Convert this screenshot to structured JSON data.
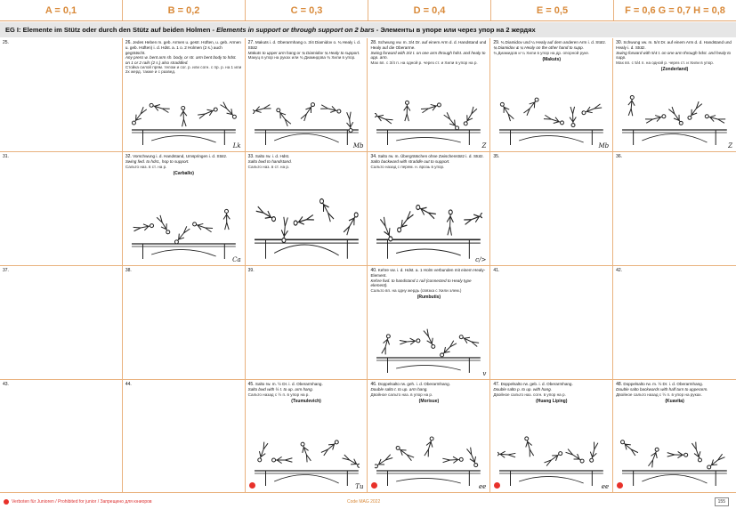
{
  "header": {
    "columns": [
      "A = 0,1",
      "B = 0,2",
      "C = 0,3",
      "D = 0,4",
      "E = 0,5",
      "F = 0,6 G = 0,7 H = 0,8"
    ]
  },
  "group": {
    "prefix": "EG I:",
    "german": "Elemente im Stütz oder durch den Stütz auf beiden Holmen -",
    "english": "Elements in support or through support on 2 bars",
    "russian": "- Элементы в упоре или через упор на 2 жердях"
  },
  "cells": [
    {
      "num": "25.",
      "de": "",
      "en": "",
      "ru": "",
      "name": "",
      "sig": "",
      "drawing": false,
      "red": false
    },
    {
      "num": "26.",
      "de": "Jedes Heben m. geb. Armen u. gestr. Hüften, u. geb. Armen u. geb. Hüften) i. d. Hdst. a. 1 o. 2 Holmen (2 s.) auch gegrätscht.",
      "en": "Any press w. bent arm sh. body, or str. arm bent body to hdst. on 1 or 2 rails (2 s.) also straddled.",
      "ru": "Стойка силой прям. телом и сог. р. или согн. с пр. р. на 1 или 2х жерд. также и с развед.",
      "name": "",
      "sig": "Lk",
      "drawing": true,
      "red": false
    },
    {
      "num": "27.",
      "de": "Makuts i. d. Oberarmhang o. 3/4 Diamidov o. ¾ Healy i. d. Stütz",
      "en": "Makuts to upper arm hang or ¾ Diamidov ¾ Healy to support.",
      "ru": "Макуц в упор на руках или ¾ Диамидова ¾ Хили в упор.",
      "name": "",
      "sig": "Mb",
      "drawing": true,
      "red": false
    },
    {
      "num": "28.",
      "de": "Schwung vw. m. 3/4 Dr. auf einem Arm d. d. Handstand und Healy auf die Oberarme.",
      "en": "Swing forward with 3/4 t. on one arm through hdst. and healy to upp. arm.",
      "ru": "Мах вп. с 3/4 п. на одной р. через ст. и Хили в упор на р.",
      "name": "",
      "sig": "Z",
      "drawing": true,
      "red": false
    },
    {
      "num": "29.",
      "de": "¾ Diamidov und ¼ Healy auf dem anderen Arm i. d. Stütz.",
      "en": "¾ Diamidov & ¼ Healy on the other hand to supp.",
      "ru": "¾ Диамидов и ¼ Хили в упор на др. опорной руке.",
      "name": "(Makuts)",
      "sig": "Mb",
      "drawing": true,
      "red": false
    },
    {
      "num": "30.",
      "de": "Schwung vw. m. 5/4 Dr. auf einem Arm d. d. Handstand und Healy i. d. Stütz.",
      "en": "Swing forward with 5/4 t. on one arm through hdst. and healy to supp.",
      "ru": "Мах вп. с 5/4 п. на одной р. через ст. и Хили в упор.",
      "name": "(Zonderland)",
      "sig": "Z",
      "drawing": true,
      "red": false
    },
    {
      "num": "31.",
      "de": "",
      "en": "",
      "ru": "",
      "name": "",
      "sig": "",
      "drawing": false,
      "red": false
    },
    {
      "num": "32.",
      "de": "Vorschwung i. d. Handstand, Umspringen i. d. Stütz.",
      "en": "Swing fwd. to hdst., hop to support.",
      "ru": "Сальто наз. в ст. на р.",
      "name": "(Carballo)",
      "sig": "Ca",
      "drawing": true,
      "red": false
    },
    {
      "num": "33.",
      "de": "Salto rw. i. d. Hdst.",
      "en": "Salto bwd to handstand.",
      "ru": "Сальто наз. в ст. на р.",
      "name": "",
      "sig": "",
      "drawing": true,
      "red": false
    },
    {
      "num": "34.",
      "de": "Salto rw. m. Übergrätschen ohne Zwischenstütz i. d. Stütz.",
      "en": "Salto backward with straddle out to support.",
      "ru": "Сальто назад с перем. н. врозь в упор.",
      "name": "",
      "sig": "c/>",
      "drawing": true,
      "red": false
    },
    {
      "num": "35.",
      "de": "",
      "en": "",
      "ru": "",
      "name": "",
      "sig": "",
      "drawing": false,
      "red": false
    },
    {
      "num": "36.",
      "de": "",
      "en": "",
      "ru": "",
      "name": "",
      "sig": "",
      "drawing": false,
      "red": false
    },
    {
      "num": "37.",
      "de": "",
      "en": "",
      "ru": "",
      "name": "",
      "sig": "",
      "drawing": false,
      "red": false
    },
    {
      "num": "38.",
      "de": "",
      "en": "",
      "ru": "",
      "name": "",
      "sig": "",
      "drawing": false,
      "red": false
    },
    {
      "num": "39.",
      "de": "",
      "en": "",
      "ru": "",
      "name": "",
      "sig": "",
      "drawing": false,
      "red": false
    },
    {
      "num": "40.",
      "de": "Kehre vw. i. d. Hdst. a. 1 Holm verbunden mit einem Healy-Element.",
      "en": "Kehre fwd. to handstand 1 rail (connected to Healy type element).",
      "ru": "Сальто вп. на одну жердь (связка с Хили элем.)",
      "name": "(Rumbutis)",
      "sig": "v",
      "drawing": true,
      "red": false
    },
    {
      "num": "41.",
      "de": "",
      "en": "",
      "ru": "",
      "name": "",
      "sig": "",
      "drawing": false,
      "red": false
    },
    {
      "num": "42.",
      "de": "",
      "en": "",
      "ru": "",
      "name": "",
      "sig": "",
      "drawing": false,
      "red": false
    },
    {
      "num": "43.",
      "de": "",
      "en": "",
      "ru": "",
      "name": "",
      "sig": "",
      "drawing": false,
      "red": false
    },
    {
      "num": "44.",
      "de": "",
      "en": "",
      "ru": "",
      "name": "",
      "sig": "",
      "drawing": false,
      "red": false
    },
    {
      "num": "45.",
      "de": "Salto rw. m. ½ Dr. i. d. Oberarmhang.",
      "en": "Salto bwd with ½ t. to up. arm hang.",
      "ru": "Сальто назад с ½ п. в упор на р.",
      "name": "(Tsumulevich)",
      "sig": "Tu",
      "drawing": true,
      "red": true
    },
    {
      "num": "46.",
      "de": "Doppelsalto rw. geh. i. d. Oberarmhang.",
      "en": "Double salto t. to up. arm hang.",
      "ru": "Двойное сальто наз. в упор на р.",
      "name": "(Morisue)",
      "sig": "ee",
      "drawing": true,
      "red": true
    },
    {
      "num": "47.",
      "de": "Doppelsalto rw. geb. i. d. Oberarmhang.",
      "en": "Double salto p. to up. with hang.",
      "ru": "Двойное сальто наз. согн. в упор на р.",
      "name": "(Huang Liping)",
      "sig": "ee",
      "drawing": true,
      "red": true
    },
    {
      "num": "48.",
      "de": "Doppelsalto rw. m. ½ Dr. i. d. Oberarmhang.",
      "en": "Double salto backwards with half turn to upperarm.",
      "ru": "Двойное сальто назад с ½ п. в упор на руках.",
      "name": "(Kuavita)",
      "sig": "",
      "drawing": true,
      "red": true
    }
  ],
  "footer": {
    "note": "Verboten für Junioren / Prohibited for junior / Запрещено для юниоров",
    "center": "Code MAG 2022",
    "page": "155"
  }
}
